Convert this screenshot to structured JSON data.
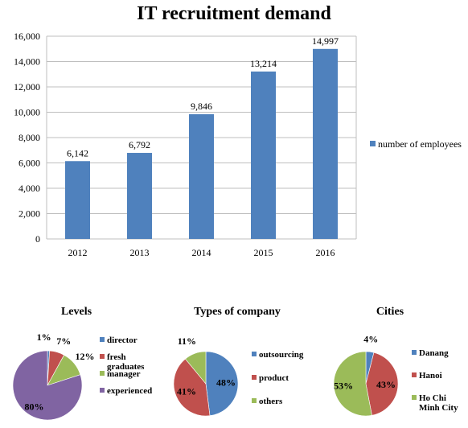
{
  "title": "IT recruitment demand",
  "chart_data": [
    {
      "type": "bar",
      "title": "IT recruitment demand",
      "categories": [
        "2012",
        "2013",
        "2014",
        "2015",
        "2016"
      ],
      "series": [
        {
          "name": "number of employees",
          "values": [
            6142,
            6792,
            9846,
            13214,
            14997
          ],
          "color": "#4f81bd"
        }
      ],
      "data_labels": [
        "6,142",
        "6,792",
        "9,846",
        "13,214",
        "14,997"
      ],
      "y_ticks": [
        "0",
        "2,000",
        "4,000",
        "6,000",
        "8,000",
        "10,000",
        "12,000",
        "14,000",
        "16,000"
      ],
      "ylim": [
        0,
        16000
      ],
      "grid": true,
      "legend": "right"
    },
    {
      "type": "pie",
      "title": "Levels",
      "labels": [
        "director",
        "fresh graduates",
        "manager",
        "experienced"
      ],
      "values": [
        1,
        7,
        12,
        80
      ],
      "value_labels": [
        "1%",
        "7%",
        "12%",
        "80%"
      ],
      "colors": [
        "#4f81bd",
        "#c0504d",
        "#9bbb59",
        "#8064a2"
      ],
      "legend": "right"
    },
    {
      "type": "pie",
      "title": "Types of company",
      "labels": [
        "outsourcing",
        "product",
        "others"
      ],
      "values": [
        48,
        41,
        11
      ],
      "value_labels": [
        "48%",
        "41%",
        "11%"
      ],
      "colors": [
        "#4f81bd",
        "#c0504d",
        "#9bbb59"
      ],
      "legend": "right"
    },
    {
      "type": "pie",
      "title": "Cities",
      "labels": [
        "Danang",
        "Hanoi",
        "Ho Chi Minh City"
      ],
      "values": [
        4,
        43,
        53
      ],
      "value_labels": [
        "4%",
        "43%",
        "53%"
      ],
      "colors": [
        "#4f81bd",
        "#c0504d",
        "#9bbb59"
      ],
      "legend": "right"
    }
  ]
}
